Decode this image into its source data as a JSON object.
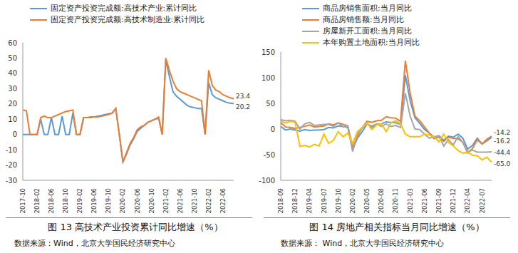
{
  "chart_data": [
    {
      "type": "line",
      "title": "图 13 高技术产业投资累计同比增速（%）",
      "source": "数据来源：Wind，北京大学国民经济研究中心",
      "categories": [
        "2017-10",
        null,
        null,
        null,
        "2018-02",
        null,
        null,
        null,
        "2018-06",
        null,
        null,
        null,
        "2018-10",
        null,
        null,
        null,
        "2019-02",
        null,
        null,
        null,
        "2019-06",
        null,
        null,
        null,
        "2019-10",
        null,
        null,
        null,
        "2020-02",
        null,
        null,
        null,
        "2020-06",
        null,
        null,
        null,
        "2020-10",
        null,
        null,
        null,
        "2021-02",
        null,
        null,
        null,
        "2021-06",
        null,
        null,
        null,
        "2021-10",
        null,
        null,
        null,
        "2022-02",
        null,
        null,
        null,
        "2022-06",
        null,
        null,
        null
      ],
      "series": [
        {
          "name": "固定资产投资完成额:高技术产业:累计同比",
          "color": "#5b9bd5",
          "values": [
            0,
            0,
            0,
            0,
            0,
            10,
            0,
            0,
            11,
            0,
            0,
            12,
            0,
            0,
            14,
            0,
            0,
            11,
            11,
            11.5,
            11.5,
            12,
            12.5,
            13,
            13.5,
            14,
            17,
            0,
            -18,
            -13,
            -7,
            -3,
            2,
            4,
            6,
            8,
            9,
            10,
            10.6,
            0,
            49,
            38,
            28,
            25,
            23,
            21,
            19,
            18,
            17.5,
            17,
            17,
            0,
            34,
            26,
            24,
            23,
            22,
            21,
            20.5,
            20.2
          ]
        },
        {
          "name": "固定资产投资完成额:高技术制造业:累计同比",
          "color": "#ed7d31",
          "values": [
            16,
            15.5,
            0,
            0,
            0,
            11,
            12,
            11,
            11,
            12,
            13,
            14,
            15,
            15.5,
            16,
            0,
            0,
            11,
            11,
            11,
            11.5,
            11.5,
            12,
            12.5,
            13,
            14,
            17,
            0,
            -18,
            -12,
            -6,
            -2,
            3,
            5,
            6,
            8,
            9,
            10,
            11.5,
            0,
            50,
            42,
            35,
            30,
            28,
            27,
            26,
            25,
            24,
            23,
            22,
            0,
            42,
            32,
            29,
            28,
            26,
            25,
            24,
            23.4
          ]
        }
      ],
      "ylim": [
        -30,
        60
      ],
      "yticks": [
        -30,
        -20,
        -10,
        0,
        10,
        20,
        30,
        40,
        50,
        60
      ],
      "grid": false,
      "legend": "top",
      "marker": "none",
      "line_style": "solid",
      "annotations": [
        {
          "series": "固定资产投资完成额:高技术制造业:累计同比",
          "text": "23.4"
        },
        {
          "series": "固定资产投资完成额:高技术产业:累计同比",
          "text": "20.2"
        }
      ]
    },
    {
      "type": "line",
      "title": "图 14 房地产相关指标当月同比增速（%）",
      "source": "数据来源： Wind，北京大学国民经济研究中心",
      "categories": [
        "2018-09",
        null,
        null,
        "2018-12",
        null,
        null,
        "2019-04",
        null,
        null,
        "2019-07",
        null,
        null,
        "2019-10",
        null,
        null,
        "2020-02",
        null,
        null,
        "2020-05",
        null,
        null,
        "2020-08",
        null,
        null,
        "2020-11",
        null,
        null,
        "2021-03",
        null,
        null,
        "2021-06",
        null,
        null,
        "2021-09",
        null,
        null,
        "2021-12",
        null,
        null,
        "2022-04",
        null,
        null,
        "2022-07",
        null,
        null
      ],
      "series": [
        {
          "name": "商品房销售面积:当月同比",
          "color": "#5b9bd5",
          "values": [
            5,
            -2,
            0,
            -2,
            -4,
            -1,
            -3,
            -2,
            -2,
            -1,
            3,
            2,
            6,
            5,
            3,
            -40,
            -18,
            -5,
            10,
            3,
            9,
            10,
            14,
            13,
            12,
            9,
            105,
            55,
            22,
            11,
            -1,
            -8,
            -16,
            -13,
            -22,
            -14,
            -16,
            -10,
            -18,
            -39,
            -32,
            -18,
            -29,
            -23,
            -16.2
          ]
        },
        {
          "name": "商品房销售额:当月同比",
          "color": "#ed7d31",
          "values": [
            12,
            4,
            3,
            1,
            3,
            5,
            8,
            4,
            5,
            6,
            10,
            8,
            12,
            9,
            6,
            -35,
            -14,
            3,
            15,
            13,
            16,
            17,
            24,
            22,
            21,
            15,
            133,
            70,
            25,
            16,
            4,
            -8,
            -19,
            -16,
            -24,
            -16,
            -18,
            -19,
            -26,
            -47,
            -38,
            -21,
            -29,
            -20,
            -14.2
          ]
        },
        {
          "name": "房屋新开工面积:当月同比",
          "color": "#a5a5a5",
          "values": [
            18,
            16,
            17,
            15,
            0,
            10,
            13,
            7,
            8,
            9,
            9,
            5,
            12,
            4,
            6,
            -44,
            -10,
            2,
            10,
            6,
            10,
            5,
            10,
            5,
            7,
            3,
            70,
            25,
            0,
            -1,
            -10,
            -18,
            -15,
            -14,
            -33,
            -21,
            -31,
            -15,
            -26,
            -44,
            -41,
            -45,
            -45,
            -45,
            -44.4
          ]
        },
        {
          "name": "本年购置土地面积:当月同比",
          "color": "#ffc000",
          "values": [
            15,
            12,
            15,
            13,
            -34,
            -32,
            -35,
            -30,
            -33,
            -10,
            -28,
            -22,
            -5,
            -15,
            -8,
            -28,
            -5,
            3,
            12,
            -1,
            8,
            10,
            -5,
            12,
            16,
            10,
            -10,
            -15,
            -15,
            -15,
            -10,
            -12,
            -15,
            -25,
            -10,
            -26,
            -33,
            -42,
            -47,
            -45,
            -51,
            -52,
            -60,
            -55,
            -65
          ]
        }
      ],
      "ylim": [
        -100,
        150
      ],
      "yticks": [
        -100,
        -50,
        0,
        50,
        100,
        150
      ],
      "grid": false,
      "legend": "top",
      "marker": "none",
      "line_style": "solid",
      "annotations": [
        {
          "series": "商品房销售额:当月同比",
          "text": "-14.2"
        },
        {
          "series": "商品房销售面积:当月同比",
          "text": "-16.2"
        },
        {
          "series": "房屋新开工面积:当月同比",
          "text": "-44.4"
        },
        {
          "series": "本年购置土地面积:当月同比",
          "text": "-65.0"
        }
      ]
    }
  ]
}
